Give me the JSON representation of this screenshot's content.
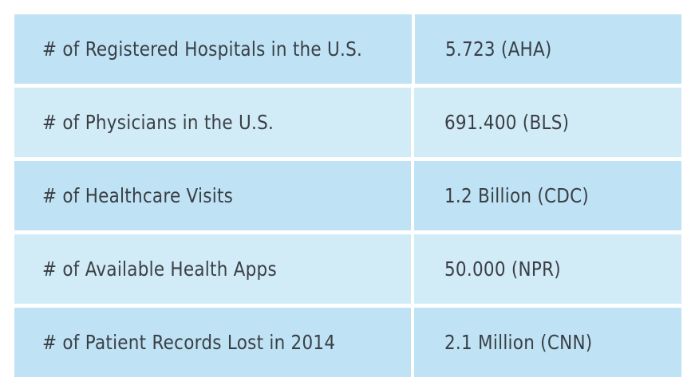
{
  "table": {
    "rows": [
      {
        "label": "# of Registered Hospitals in the U.S.",
        "value": "5.723 (AHA)"
      },
      {
        "label": "# of Physicians in the U.S.",
        "value": "691.400 (BLS)"
      },
      {
        "label": "# of Healthcare Visits",
        "value": "1.2 Billion (CDC)"
      },
      {
        "label": "# of Available Health Apps",
        "value": "50.000 (NPR)"
      },
      {
        "label": "# of Patient Records Lost in 2014",
        "value": "2.1 Million (CNN)"
      }
    ]
  },
  "colors": {
    "row_dark": "#bfe3f5",
    "row_light": "#d2ecf7",
    "text": "#3a3f45"
  }
}
